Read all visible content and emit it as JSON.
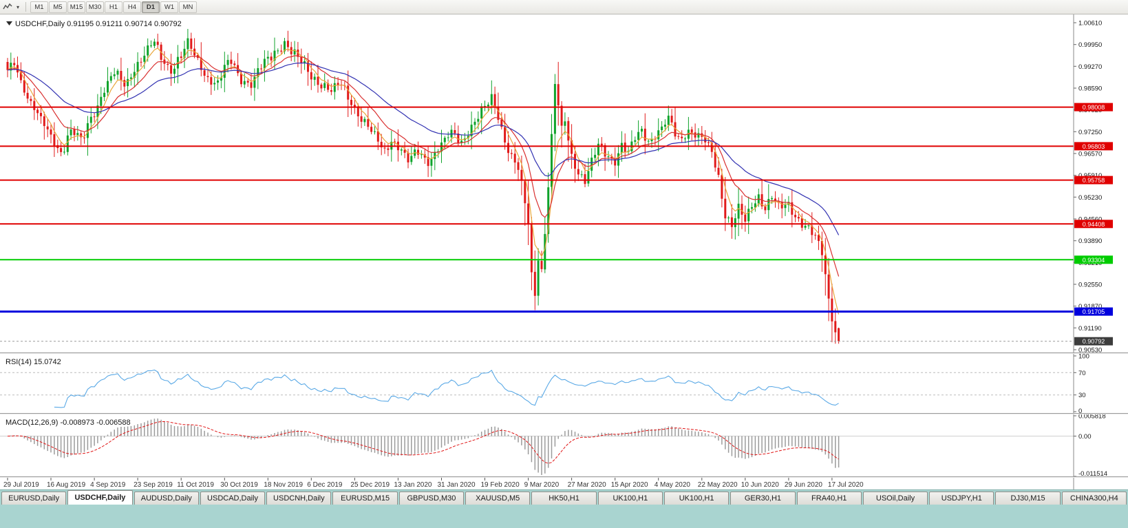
{
  "toolbar": {
    "timeframes": [
      "M1",
      "M5",
      "M15",
      "M30",
      "H1",
      "H4",
      "D1",
      "W1",
      "MN"
    ],
    "active_timeframe": "D1"
  },
  "chart": {
    "title_line": "USDCHF,Daily 0.91195 0.91211 0.90714 0.90792",
    "symbol": "USDCHF",
    "timeframe": "Daily",
    "ohlc": {
      "open": "0.91195",
      "high": "0.91211",
      "low": "0.90714",
      "close": "0.90792"
    },
    "axis_top": 1.0061,
    "axis_bottom": 0.9053,
    "price_axis_labels": [
      "1.00610",
      "0.99950",
      "0.99270",
      "0.98590",
      "0.97920",
      "0.97250",
      "0.96570",
      "0.95910",
      "0.95230",
      "0.94560",
      "0.93890",
      "0.93210",
      "0.92550",
      "0.91870",
      "0.91190",
      "0.90530"
    ],
    "hlines": [
      {
        "price": 0.98008,
        "label": "0.98008",
        "color": "#e00000",
        "width": 2
      },
      {
        "price": 0.96803,
        "label": "0.96803",
        "color": "#e00000",
        "width": 2
      },
      {
        "price": 0.95758,
        "label": "0.95758",
        "color": "#e00000",
        "width": 2
      },
      {
        "price": 0.94408,
        "label": "0.94408",
        "color": "#e00000",
        "width": 2
      },
      {
        "price": 0.93304,
        "label": "0.93304",
        "color": "#00cc00",
        "width": 2
      },
      {
        "price": 0.91705,
        "label": "0.91705",
        "color": "#0000dd",
        "width": 3
      }
    ],
    "last_price_tag": {
      "label": "0.90792",
      "price": 0.90792,
      "bg": "#3c3c3c"
    },
    "ma_lines": [
      {
        "period": 5,
        "color": "#e9a63a"
      },
      {
        "period": 13,
        "color": "#d93030"
      },
      {
        "period": 34,
        "color": "#3232b2"
      }
    ]
  },
  "chart_data": {
    "type": "candlestick",
    "symbol": "USDCHF",
    "timeframe": "Daily",
    "candle_count": 250,
    "wiggle": 0.0011,
    "up_color": "#0fa32b",
    "down_color": "#e11a1a",
    "anchors": [
      [
        0,
        0.9905
      ],
      [
        2,
        0.994
      ],
      [
        4,
        0.9885
      ],
      [
        7,
        0.9815
      ],
      [
        10,
        0.9755
      ],
      [
        13,
        0.971
      ],
      [
        16,
        0.9668
      ],
      [
        19,
        0.9725
      ],
      [
        22,
        0.9695
      ],
      [
        26,
        0.979
      ],
      [
        29,
        0.9858
      ],
      [
        32,
        0.99
      ],
      [
        35,
        0.9872
      ],
      [
        39,
        0.9938
      ],
      [
        42,
        0.9972
      ],
      [
        44,
        0.9998
      ],
      [
        46,
        0.9952
      ],
      [
        49,
        0.9922
      ],
      [
        52,
        0.9958
      ],
      [
        54,
        0.9992
      ],
      [
        57,
        0.9942
      ],
      [
        60,
        0.9895
      ],
      [
        63,
        0.9872
      ],
      [
        65,
        0.9918
      ],
      [
        67,
        0.9938
      ],
      [
        70,
        0.9892
      ],
      [
        73,
        0.9875
      ],
      [
        76,
        0.992
      ],
      [
        78,
        0.9945
      ],
      [
        81,
        0.9982
      ],
      [
        83,
        1.0005
      ],
      [
        85,
        0.9972
      ],
      [
        88,
        0.9935
      ],
      [
        91,
        0.99
      ],
      [
        94,
        0.9876
      ],
      [
        97,
        0.9848
      ],
      [
        100,
        0.9868
      ],
      [
        103,
        0.9822
      ],
      [
        104,
        0.98
      ],
      [
        107,
        0.9752
      ],
      [
        110,
        0.9705
      ],
      [
        113,
        0.9668
      ],
      [
        115,
        0.9706
      ],
      [
        117,
        0.9682
      ],
      [
        120,
        0.963
      ],
      [
        123,
        0.9663
      ],
      [
        126,
        0.9641
      ],
      [
        130,
        0.968
      ],
      [
        133,
        0.9718
      ],
      [
        136,
        0.97
      ],
      [
        139,
        0.9744
      ],
      [
        143,
        0.9792
      ],
      [
        145,
        0.983
      ],
      [
        147,
        0.978
      ],
      [
        149,
        0.9702
      ],
      [
        151,
        0.9645
      ],
      [
        153,
        0.9605
      ],
      [
        155,
        0.95
      ],
      [
        156,
        0.9445
      ],
      [
        157,
        0.9285
      ],
      [
        158,
        0.9232
      ],
      [
        159,
        0.9345
      ],
      [
        160,
        0.93
      ],
      [
        161,
        0.942
      ],
      [
        162,
        0.9558
      ],
      [
        163,
        0.97
      ],
      [
        164,
        0.9868
      ],
      [
        165,
        0.98
      ],
      [
        166,
        0.9725
      ],
      [
        167,
        0.9762
      ],
      [
        168,
        0.9705
      ],
      [
        169,
        0.9655
      ],
      [
        171,
        0.9605
      ],
      [
        173,
        0.9572
      ],
      [
        175,
        0.9625
      ],
      [
        177,
        0.968
      ],
      [
        179,
        0.9662
      ],
      [
        182,
        0.9641
      ],
      [
        184,
        0.9682
      ],
      [
        186,
        0.9652
      ],
      [
        188,
        0.9702
      ],
      [
        190,
        0.9732
      ],
      [
        192,
        0.9702
      ],
      [
        195,
        0.9722
      ],
      [
        198,
        0.9756
      ],
      [
        201,
        0.9705
      ],
      [
        204,
        0.9732
      ],
      [
        208,
        0.97
      ],
      [
        211,
        0.9662
      ],
      [
        213,
        0.959
      ],
      [
        215,
        0.9475
      ],
      [
        217,
        0.9435
      ],
      [
        219,
        0.9482
      ],
      [
        221,
        0.9445
      ],
      [
        223,
        0.9502
      ],
      [
        225,
        0.9532
      ],
      [
        227,
        0.9492
      ],
      [
        229,
        0.9522
      ],
      [
        231,
        0.9485
      ],
      [
        234,
        0.9502
      ],
      [
        236,
        0.9472
      ],
      [
        238,
        0.9445
      ],
      [
        240,
        0.9422
      ],
      [
        242,
        0.9392
      ],
      [
        244,
        0.9352
      ],
      [
        245,
        0.9285
      ],
      [
        246,
        0.9212
      ],
      [
        247,
        0.9162
      ],
      [
        248,
        0.9112
      ],
      [
        249,
        0.90792
      ]
    ]
  },
  "rsi": {
    "header": "RSI(14) 15.0742",
    "name": "RSI(14)",
    "value": 15.0742,
    "period": 14,
    "line_color": "#5aa9e6",
    "levels": [
      70,
      30
    ],
    "axis_labels": [
      {
        "text": "100",
        "value": 100
      },
      {
        "text": "70",
        "value": 70
      },
      {
        "text": "30",
        "value": 30
      },
      {
        "text": "0",
        "value": 0
      }
    ]
  },
  "macd": {
    "header": "MACD(12,26,9) -0.008973 -0.006588",
    "name": "MACD(12,26,9)",
    "value_main": -0.008973,
    "value_signal": -0.006588,
    "fast": 12,
    "slow": 26,
    "signal": 9,
    "axis_top": 0.005818,
    "axis_bottom": -0.011514,
    "bar_color": "#9b9b9b",
    "signal_color": "#e01414",
    "axis_labels": [
      {
        "text": "0.005818",
        "value": 0.005818
      },
      {
        "text": "0.00",
        "value": 0
      },
      {
        "text": "-0.011514",
        "value": -0.011514
      }
    ]
  },
  "date_axis": {
    "step": 13,
    "labels": [
      "29 Jul 2019",
      "16 Aug 2019",
      "4 Sep 2019",
      "23 Sep 2019",
      "11 Oct 2019",
      "30 Oct 2019",
      "18 Nov 2019",
      "6 Dec 2019",
      "25 Dec 2019",
      "13 Jan 2020",
      "31 Jan 2020",
      "19 Feb 2020",
      "9 Mar 2020",
      "27 Mar 2020",
      "15 Apr 2020",
      "4 May 2020",
      "22 May 2020",
      "10 Jun 2020",
      "29 Jun 2020",
      "17 Jul 2020"
    ]
  },
  "tabs": {
    "active": "USDCHF,Daily",
    "items": [
      "EURUSD,Daily",
      "USDCHF,Daily",
      "AUDUSD,Daily",
      "USDCAD,Daily",
      "USDCNH,Daily",
      "EURUSD,M15",
      "GBPUSD,M30",
      "XAUUSD,M5",
      "HK50,H1",
      "UK100,H1",
      "UK100,H1",
      "GER30,H1",
      "FRA40,H1",
      "USOil,Daily",
      "USDJPY,H1",
      "DJ30,M15",
      "CHINA300,H4"
    ]
  }
}
